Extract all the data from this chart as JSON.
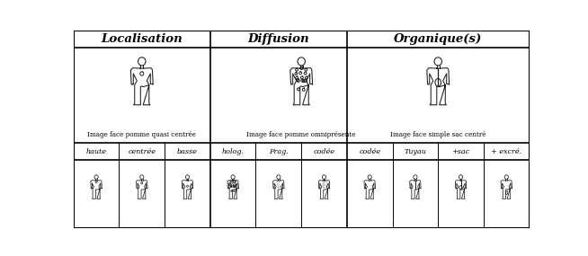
{
  "title_row": [
    "Localisation",
    "Diffusion",
    "Organique(s)"
  ],
  "title_col_spans": [
    3,
    3,
    4
  ],
  "title_col_starts": [
    0,
    3,
    6
  ],
  "big_image_labels": [
    "Image face pomme quasi centrée",
    "Image face pomme omniprésente",
    "Image face simple sac centré"
  ],
  "subdivision_labels": [
    "haute",
    "centrée",
    "basse",
    "holog.",
    "Frag.",
    "codée",
    "codée",
    "Tuyau",
    "+sac",
    "+ excré."
  ],
  "bg_color": "#ffffff",
  "border_color": "#000000",
  "dividers": [
    3,
    6
  ],
  "fig_color": "#1a1a1a"
}
